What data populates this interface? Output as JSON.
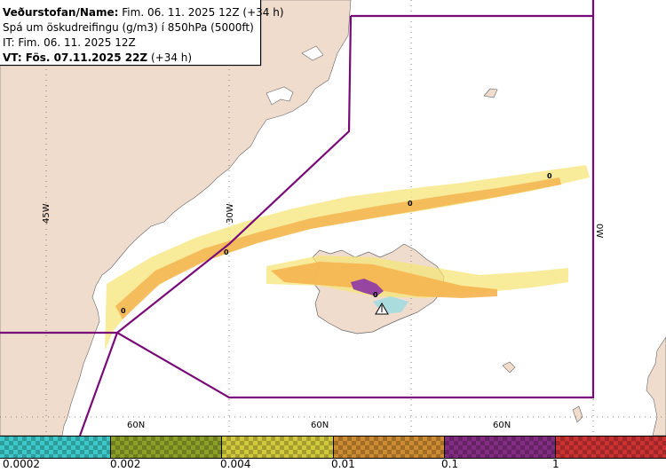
{
  "info": {
    "line1_label": "Veðurstofan/Name:",
    "line1_value": "Fim. 06. 11. 2025 12Z (+34 h)",
    "line2": "Spá um öskudreifingu (g/m3) í 850hPa (5000ft)",
    "line3": "IT: Fim. 06. 11. 2025 12Z",
    "line4_label": "VT: Fös. 07.11.2025 22Z",
    "line4_value": "(+34 h)"
  },
  "map": {
    "lon_labels": [
      "45W",
      "30W",
      "0W"
    ],
    "lat_labels": [
      "60N",
      "60N",
      "60N"
    ],
    "contour_label": "0"
  },
  "legend": {
    "ticks": [
      "0.0002",
      "0.002",
      "0.004",
      "0.01",
      "0.1",
      "1"
    ],
    "colors": [
      "#3cc8c8",
      "#8ca028",
      "#d2c83c",
      "#cd8c32",
      "#822d82",
      "#cd3232"
    ]
  },
  "colors": {
    "land": "#f0dccd",
    "boundary": "#780a78",
    "ash_light": "#f5e678",
    "ash_orange": "#f5b450",
    "ash_purple": "#9646a0",
    "ash_cyan": "#8cdce6",
    "grid": "#646464"
  }
}
